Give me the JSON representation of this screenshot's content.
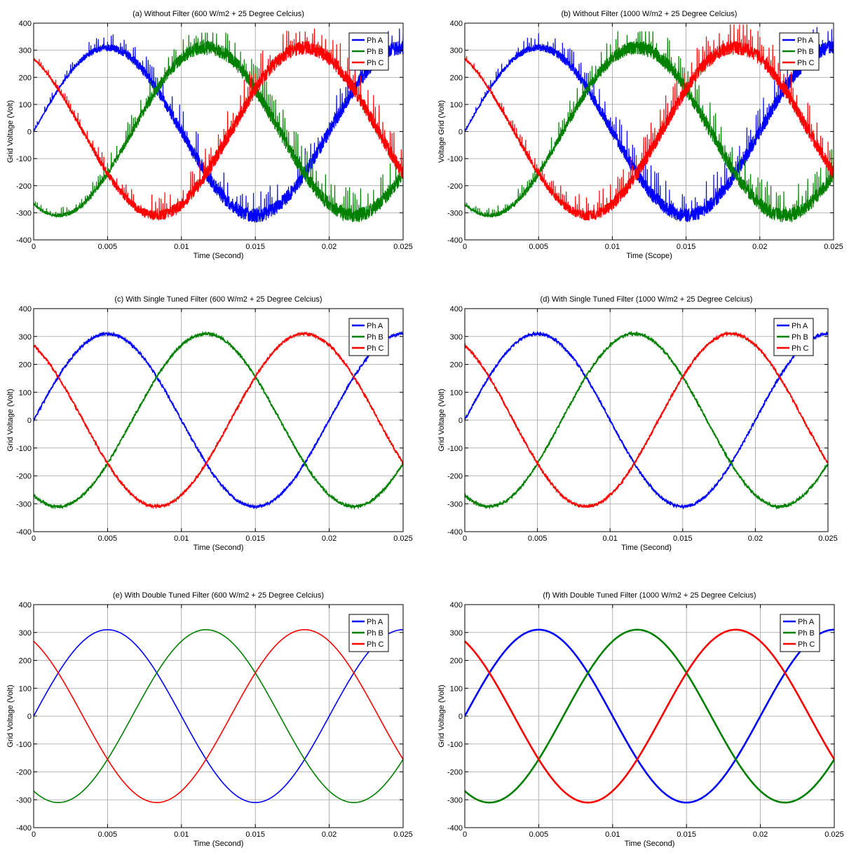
{
  "phase_colors": {
    "Ph A": "#0000ff",
    "Ph B": "#008000",
    "Ph C": "#ff0000"
  },
  "chart_data": [
    {
      "type": "line",
      "title": "(a) Without Filter (600 W/m2 + 25 Degree Celcius)",
      "xlabel": "Time (Second)",
      "ylabel": "Grid Voltage (Volt)",
      "xlim": [
        0,
        0.025
      ],
      "ylim": [
        -400,
        400
      ],
      "xticks": [
        "0",
        "0.005",
        "0.01",
        "0.015",
        "0.02",
        "0.025"
      ],
      "yticks": [
        "-400",
        "-300",
        "-200",
        "-100",
        "0",
        "100",
        "200",
        "300",
        "400"
      ],
      "grid": true,
      "legend": "top-right",
      "frequency_hz": 50,
      "amplitude": 310,
      "distortion": "heavy harmonic ripple",
      "series": [
        {
          "name": "Ph A",
          "phase_deg": 0,
          "peak_abs": 380
        },
        {
          "name": "Ph B",
          "phase_deg": -120,
          "peak_abs": 365
        },
        {
          "name": "Ph C",
          "phase_deg": 120,
          "peak_abs": 380
        }
      ]
    },
    {
      "type": "line",
      "title": "(b) Without Filter (1000 W/m2 + 25 Degree Celcius)",
      "xlabel": "Time (Scope)",
      "ylabel": "Voltage Grid (Volt)",
      "xlim": [
        0,
        0.025
      ],
      "ylim": [
        -400,
        400
      ],
      "xticks": [
        "0",
        "0.005",
        "0.01",
        "0.015",
        "0.02",
        "0.025"
      ],
      "yticks": [
        "-400",
        "-300",
        "-200",
        "-100",
        "0",
        "100",
        "200",
        "300",
        "400"
      ],
      "grid": true,
      "legend": "top-right",
      "frequency_hz": 50,
      "amplitude": 310,
      "distortion": "heavy harmonic ripple",
      "series": [
        {
          "name": "Ph A",
          "phase_deg": 0,
          "peak_abs": 390
        },
        {
          "name": "Ph B",
          "phase_deg": -120,
          "peak_abs": 370
        },
        {
          "name": "Ph C",
          "phase_deg": 120,
          "peak_abs": 395
        }
      ]
    },
    {
      "type": "line",
      "title": "(c) With Single Tuned Filter (600 W/m2 + 25 Degree Celcius)",
      "xlabel": "Time (Second)",
      "ylabel": "Grid Voltage (Volt)",
      "xlim": [
        0,
        0.025
      ],
      "ylim": [
        -400,
        400
      ],
      "xticks": [
        "0",
        "0.005",
        "0.01",
        "0.015",
        "0.02",
        "0.025"
      ],
      "yticks": [
        "-400",
        "-300",
        "-200",
        "-100",
        "0",
        "100",
        "200",
        "300",
        "400"
      ],
      "grid": true,
      "legend": "top-right",
      "frequency_hz": 50,
      "amplitude": 310,
      "distortion": "slight ripple",
      "series": [
        {
          "name": "Ph A",
          "phase_deg": 0
        },
        {
          "name": "Ph B",
          "phase_deg": -120
        },
        {
          "name": "Ph C",
          "phase_deg": 120
        }
      ]
    },
    {
      "type": "line",
      "title": "(d) With Single Tuned Filter (1000 W/m2 + 25 Degree Celcius)",
      "xlabel": "Time (Second)",
      "ylabel": "Grid Voltage (Volt)",
      "xlim": [
        0,
        0.025
      ],
      "ylim": [
        -400,
        400
      ],
      "xticks": [
        "0",
        "0.005",
        "0.01",
        "0.015",
        "0.02",
        "0.025"
      ],
      "yticks": [
        "-400",
        "-300",
        "-200",
        "-100",
        "0",
        "100",
        "200",
        "300",
        "400"
      ],
      "grid": true,
      "legend": "top-right",
      "frequency_hz": 50,
      "amplitude": 310,
      "distortion": "slight ripple",
      "series": [
        {
          "name": "Ph A",
          "phase_deg": 0
        },
        {
          "name": "Ph B",
          "phase_deg": -120
        },
        {
          "name": "Ph C",
          "phase_deg": 120
        }
      ]
    },
    {
      "type": "line",
      "title": "(e) With Double Tuned Filter (600 W/m2 + 25 Degree Celcius)",
      "xlabel": "Time (Second)",
      "ylabel": "Grid Voltage (Volt)",
      "xlim": [
        0,
        0.025
      ],
      "ylim": [
        -400,
        400
      ],
      "xticks": [
        "0",
        "0.005",
        "0.01",
        "0.015",
        "0.02",
        "0.025"
      ],
      "yticks": [
        "-400",
        "-300",
        "-200",
        "-100",
        "0",
        "100",
        "200",
        "300",
        "400"
      ],
      "grid": true,
      "legend": "top-right",
      "frequency_hz": 50,
      "amplitude": 310,
      "distortion": "clean",
      "series": [
        {
          "name": "Ph A",
          "phase_deg": 0
        },
        {
          "name": "Ph B",
          "phase_deg": -120
        },
        {
          "name": "Ph C",
          "phase_deg": 120
        }
      ]
    },
    {
      "type": "line",
      "title": "(f) With Double Tuned Filter (1000 W/m2 + 25 Degree Celcius)",
      "xlabel": "Time (Second)",
      "ylabel": "Grid Voltage (Volt)",
      "xlim": [
        0,
        0.025
      ],
      "ylim": [
        -400,
        400
      ],
      "xticks": [
        "0",
        "0.005",
        "0.01",
        "0.015",
        "0.02",
        "0.025"
      ],
      "yticks": [
        "-400",
        "-300",
        "-200",
        "-100",
        "0",
        "100",
        "200",
        "300",
        "400"
      ],
      "grid": true,
      "legend": "top-right",
      "frequency_hz": 50,
      "amplitude": 310,
      "distortion": "clean",
      "series": [
        {
          "name": "Ph A",
          "phase_deg": 0
        },
        {
          "name": "Ph B",
          "phase_deg": -120
        },
        {
          "name": "Ph C",
          "phase_deg": 120
        }
      ]
    }
  ]
}
